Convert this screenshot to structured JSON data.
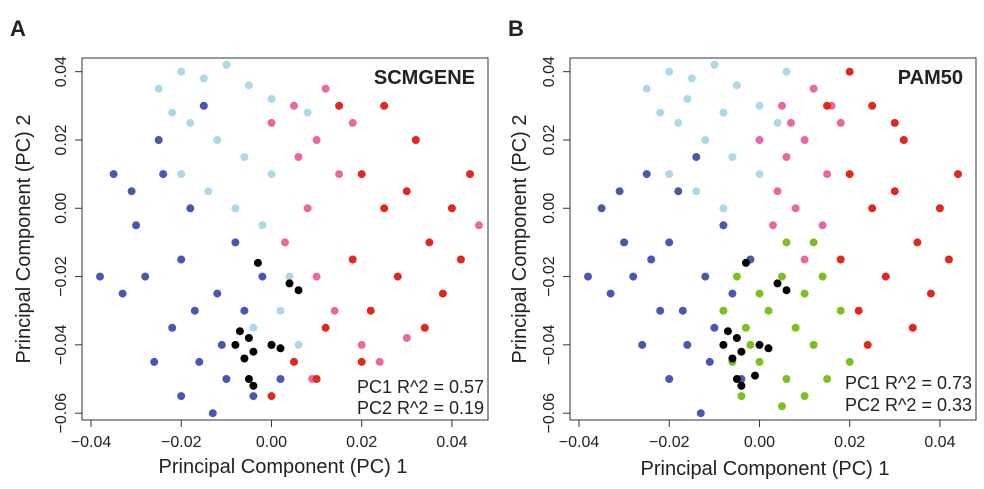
{
  "chart_data": [
    {
      "type": "scatter",
      "panel_label": "A",
      "title": "SCMGENE",
      "xlabel": "Principal Component (PC) 1",
      "ylabel": "Principal Component (PC) 2",
      "xlim": [
        -0.042,
        0.048
      ],
      "ylim": [
        -0.062,
        0.044
      ],
      "xticks": [
        -0.04,
        -0.02,
        0.0,
        0.02,
        0.04
      ],
      "xtick_labels": [
        "−0.04",
        "−0.02",
        "0.00",
        "0.02",
        "0.04"
      ],
      "yticks": [
        -0.06,
        -0.04,
        -0.02,
        0.0,
        0.02,
        0.04
      ],
      "ytick_labels": [
        "−0.06",
        "−0.04",
        "−0.02",
        "0.00",
        "0.02",
        "0.04"
      ],
      "annotations": [
        "PC1 R^2 = 0.57",
        "PC2 R^2 = 0.19"
      ],
      "series": [
        {
          "color": "#4a57b0",
          "points": [
            [
              -0.035,
              0.01
            ],
            [
              -0.03,
              -0.005
            ],
            [
              -0.028,
              -0.02
            ],
            [
              -0.025,
              0.02
            ],
            [
              -0.022,
              -0.035
            ],
            [
              -0.02,
              -0.015
            ],
            [
              -0.018,
              0.0
            ],
            [
              -0.016,
              -0.045
            ],
            [
              -0.015,
              0.03
            ],
            [
              -0.012,
              -0.025
            ],
            [
              -0.01,
              -0.05
            ],
            [
              -0.008,
              -0.01
            ],
            [
              -0.006,
              -0.03
            ],
            [
              -0.004,
              -0.055
            ],
            [
              -0.002,
              -0.02
            ],
            [
              0.0,
              -0.04
            ],
            [
              -0.033,
              -0.025
            ],
            [
              -0.026,
              -0.045
            ],
            [
              -0.02,
              -0.055
            ],
            [
              -0.013,
              -0.06
            ],
            [
              -0.038,
              -0.02
            ],
            [
              -0.031,
              0.005
            ],
            [
              -0.024,
              0.01
            ],
            [
              -0.017,
              -0.03
            ],
            [
              -0.011,
              -0.04
            ],
            [
              0.002,
              -0.05
            ]
          ]
        },
        {
          "color": "#add8e6",
          "points": [
            [
              -0.025,
              0.035
            ],
            [
              -0.02,
              0.04
            ],
            [
              -0.015,
              0.038
            ],
            [
              -0.01,
              0.042
            ],
            [
              -0.005,
              0.036
            ],
            [
              0.0,
              0.032
            ],
            [
              -0.018,
              0.025
            ],
            [
              -0.012,
              0.02
            ],
            [
              -0.006,
              0.015
            ],
            [
              0.0,
              0.01
            ],
            [
              -0.02,
              0.01
            ],
            [
              -0.014,
              0.005
            ],
            [
              -0.008,
              0.0
            ],
            [
              -0.002,
              -0.005
            ],
            [
              0.004,
              -0.02
            ],
            [
              0.006,
              -0.04
            ],
            [
              -0.004,
              -0.035
            ],
            [
              0.002,
              -0.03
            ],
            [
              0.008,
              0.028
            ],
            [
              -0.022,
              0.028
            ]
          ]
        },
        {
          "color": "#e868a2",
          "points": [
            [
              0.005,
              0.03
            ],
            [
              0.01,
              0.02
            ],
            [
              0.012,
              0.035
            ],
            [
              0.015,
              0.01
            ],
            [
              0.008,
              0.0
            ],
            [
              0.003,
              -0.01
            ],
            [
              0.01,
              -0.02
            ],
            [
              0.014,
              -0.03
            ],
            [
              0.02,
              -0.04
            ],
            [
              0.006,
              0.015
            ],
            [
              0.018,
              0.025
            ],
            [
              0.0,
              0.025
            ],
            [
              0.046,
              -0.005
            ],
            [
              0.024,
              -0.045
            ],
            [
              0.03,
              -0.038
            ],
            [
              0.009,
              -0.05
            ]
          ]
        },
        {
          "color": "#e0281e",
          "points": [
            [
              0.02,
              0.01
            ],
            [
              0.025,
              0.0
            ],
            [
              0.03,
              0.005
            ],
            [
              0.035,
              -0.01
            ],
            [
              0.028,
              -0.02
            ],
            [
              0.022,
              -0.03
            ],
            [
              0.018,
              -0.015
            ],
            [
              0.032,
              0.02
            ],
            [
              0.04,
              0.0
            ],
            [
              0.038,
              -0.025
            ],
            [
              0.015,
              0.03
            ],
            [
              0.025,
              0.03
            ],
            [
              0.012,
              -0.035
            ],
            [
              0.005,
              -0.045
            ],
            [
              0.0,
              -0.055
            ],
            [
              0.044,
              0.01
            ],
            [
              0.034,
              -0.035
            ],
            [
              0.02,
              -0.045
            ],
            [
              0.01,
              -0.05
            ],
            [
              0.042,
              -0.015
            ]
          ]
        },
        {
          "color": "#000000",
          "points": [
            [
              -0.007,
              -0.036
            ],
            [
              -0.005,
              -0.038
            ],
            [
              -0.008,
              -0.04
            ],
            [
              -0.004,
              -0.042
            ],
            [
              0.0,
              -0.04
            ],
            [
              -0.006,
              -0.044
            ],
            [
              0.002,
              -0.041
            ],
            [
              -0.005,
              -0.05
            ],
            [
              -0.004,
              -0.052
            ],
            [
              0.004,
              -0.022
            ],
            [
              0.006,
              -0.024
            ],
            [
              -0.003,
              -0.016
            ]
          ]
        }
      ]
    },
    {
      "type": "scatter",
      "panel_label": "B",
      "title": "PAM50",
      "xlabel": "Principal Component (PC) 1",
      "ylabel": "Principal Component (PC) 2",
      "xlim": [
        -0.042,
        0.048
      ],
      "ylim": [
        -0.062,
        0.044
      ],
      "xticks": [
        -0.04,
        -0.02,
        0.0,
        0.02,
        0.04
      ],
      "xtick_labels": [
        "−0.04",
        "−0.02",
        "0.00",
        "0.02",
        "0.04"
      ],
      "yticks": [
        -0.06,
        -0.04,
        -0.02,
        0.0,
        0.02,
        0.04
      ],
      "ytick_labels": [
        "−0.06",
        "−0.04",
        "−0.02",
        "0.00",
        "0.02",
        "0.04"
      ],
      "annotations": [
        "PC1 R^2 = 0.73",
        "PC2 R^2 = 0.33"
      ],
      "series": [
        {
          "color": "#4a57b0",
          "points": [
            [
              -0.035,
              0.0
            ],
            [
              -0.03,
              -0.01
            ],
            [
              -0.028,
              -0.02
            ],
            [
              -0.025,
              0.01
            ],
            [
              -0.022,
              -0.03
            ],
            [
              -0.02,
              -0.01
            ],
            [
              -0.018,
              0.005
            ],
            [
              -0.016,
              -0.04
            ],
            [
              -0.014,
              0.015
            ],
            [
              -0.012,
              -0.02
            ],
            [
              -0.01,
              -0.035
            ],
            [
              -0.008,
              -0.005
            ],
            [
              -0.006,
              -0.025
            ],
            [
              -0.004,
              -0.05
            ],
            [
              -0.002,
              -0.015
            ],
            [
              -0.033,
              -0.025
            ],
            [
              -0.026,
              -0.04
            ],
            [
              -0.02,
              -0.05
            ],
            [
              -0.013,
              -0.06
            ],
            [
              -0.038,
              -0.02
            ],
            [
              -0.031,
              0.005
            ],
            [
              -0.017,
              -0.03
            ],
            [
              -0.011,
              -0.045
            ],
            [
              -0.024,
              -0.015
            ]
          ]
        },
        {
          "color": "#add8e6",
          "points": [
            [
              -0.025,
              0.035
            ],
            [
              -0.02,
              0.04
            ],
            [
              -0.015,
              0.038
            ],
            [
              -0.01,
              0.042
            ],
            [
              -0.005,
              0.036
            ],
            [
              0.0,
              0.03
            ],
            [
              -0.018,
              0.025
            ],
            [
              -0.012,
              0.02
            ],
            [
              -0.006,
              0.015
            ],
            [
              0.0,
              0.01
            ],
            [
              -0.02,
              0.01
            ],
            [
              -0.014,
              0.005
            ],
            [
              -0.008,
              0.0
            ],
            [
              0.004,
              0.025
            ],
            [
              -0.022,
              0.028
            ],
            [
              -0.016,
              0.032
            ],
            [
              0.006,
              0.04
            ],
            [
              -0.008,
              0.028
            ]
          ]
        },
        {
          "color": "#e868a2",
          "points": [
            [
              0.005,
              0.03
            ],
            [
              0.01,
              0.02
            ],
            [
              0.012,
              0.035
            ],
            [
              0.015,
              0.01
            ],
            [
              0.008,
              0.0
            ],
            [
              0.003,
              -0.005
            ],
            [
              0.01,
              -0.015
            ],
            [
              0.006,
              0.015
            ],
            [
              0.018,
              0.025
            ],
            [
              0.0,
              0.02
            ],
            [
              0.014,
              -0.005
            ],
            [
              0.004,
              0.005
            ],
            [
              0.016,
              0.03
            ],
            [
              0.007,
              0.025
            ]
          ]
        },
        {
          "color": "#e0281e",
          "points": [
            [
              0.02,
              0.01
            ],
            [
              0.025,
              0.0
            ],
            [
              0.03,
              0.005
            ],
            [
              0.035,
              -0.01
            ],
            [
              0.028,
              -0.02
            ],
            [
              0.022,
              -0.03
            ],
            [
              0.018,
              -0.015
            ],
            [
              0.032,
              0.02
            ],
            [
              0.04,
              0.0
            ],
            [
              0.038,
              -0.025
            ],
            [
              0.015,
              0.03
            ],
            [
              0.025,
              0.03
            ],
            [
              0.044,
              0.01
            ],
            [
              0.034,
              -0.035
            ],
            [
              0.042,
              -0.015
            ],
            [
              0.024,
              -0.04
            ],
            [
              0.02,
              0.04
            ],
            [
              0.03,
              0.025
            ]
          ]
        },
        {
          "color": "#7ac01e",
          "points": [
            [
              -0.005,
              -0.02
            ],
            [
              0.0,
              -0.025
            ],
            [
              0.005,
              -0.02
            ],
            [
              0.01,
              -0.025
            ],
            [
              -0.008,
              -0.03
            ],
            [
              -0.003,
              -0.035
            ],
            [
              0.002,
              -0.03
            ],
            [
              0.008,
              -0.035
            ],
            [
              0.012,
              -0.04
            ],
            [
              -0.006,
              -0.045
            ],
            [
              0.0,
              -0.045
            ],
            [
              0.006,
              -0.05
            ],
            [
              -0.004,
              -0.055
            ],
            [
              0.01,
              -0.055
            ],
            [
              0.015,
              -0.05
            ],
            [
              0.018,
              -0.03
            ],
            [
              0.014,
              -0.02
            ],
            [
              0.005,
              -0.058
            ],
            [
              0.02,
              -0.045
            ],
            [
              0.012,
              -0.01
            ],
            [
              0.006,
              -0.01
            ],
            [
              -0.002,
              -0.04
            ]
          ]
        },
        {
          "color": "#000000",
          "points": [
            [
              -0.007,
              -0.036
            ],
            [
              -0.005,
              -0.038
            ],
            [
              -0.008,
              -0.04
            ],
            [
              -0.004,
              -0.042
            ],
            [
              0.0,
              -0.04
            ],
            [
              -0.006,
              -0.044
            ],
            [
              0.002,
              -0.041
            ],
            [
              -0.005,
              -0.05
            ],
            [
              -0.004,
              -0.052
            ],
            [
              -0.001,
              -0.049
            ],
            [
              0.004,
              -0.022
            ],
            [
              0.006,
              -0.024
            ],
            [
              -0.003,
              -0.016
            ]
          ]
        }
      ]
    }
  ]
}
